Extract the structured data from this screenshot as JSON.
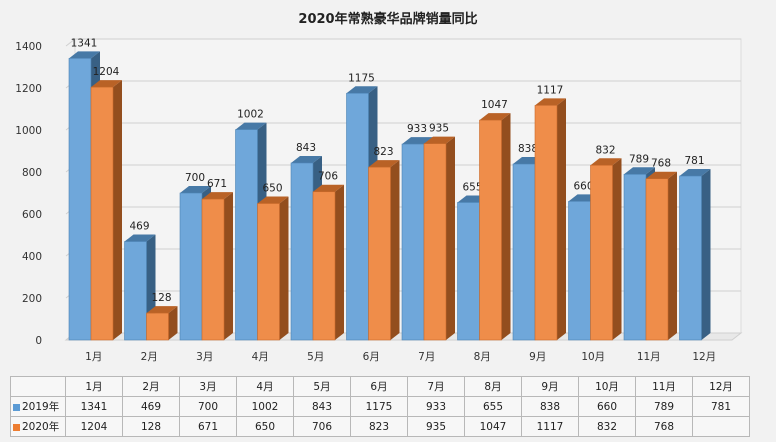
{
  "chart_data": {
    "type": "bar",
    "title": "2020年常熟豪华品牌销量同比",
    "categories": [
      "1月",
      "2月",
      "3月",
      "4月",
      "5月",
      "6月",
      "7月",
      "8月",
      "9月",
      "10月",
      "11月",
      "12月"
    ],
    "series": [
      {
        "name": "2019年",
        "color": "#5b9bd5",
        "values": [
          1341,
          469,
          700,
          1002,
          843,
          1175,
          933,
          655,
          838,
          660,
          789,
          781
        ]
      },
      {
        "name": "2020年",
        "color": "#ed7d31",
        "values": [
          1204,
          128,
          671,
          650,
          706,
          823,
          935,
          1047,
          1117,
          832,
          768,
          null
        ]
      }
    ],
    "ylim": [
      0,
      1400
    ],
    "yticks": [
      0,
      200,
      400,
      600,
      800,
      1000,
      1200,
      1400
    ],
    "grid": true,
    "legend": "data-table",
    "data_table": {
      "header": [
        "1月",
        "2月",
        "3月",
        "4月",
        "5月",
        "6月",
        "7月",
        "8月",
        "9月",
        "10月",
        "11月",
        "12月"
      ],
      "rows": [
        {
          "label": "2019年",
          "cells": [
            "1341",
            "469",
            "700",
            "1002",
            "843",
            "1175",
            "933",
            "655",
            "838",
            "660",
            "789",
            "781"
          ]
        },
        {
          "label": "2020年",
          "cells": [
            "1204",
            "128",
            "671",
            "650",
            "706",
            "823",
            "935",
            "1047",
            "1117",
            "832",
            "768",
            ""
          ]
        }
      ]
    }
  }
}
